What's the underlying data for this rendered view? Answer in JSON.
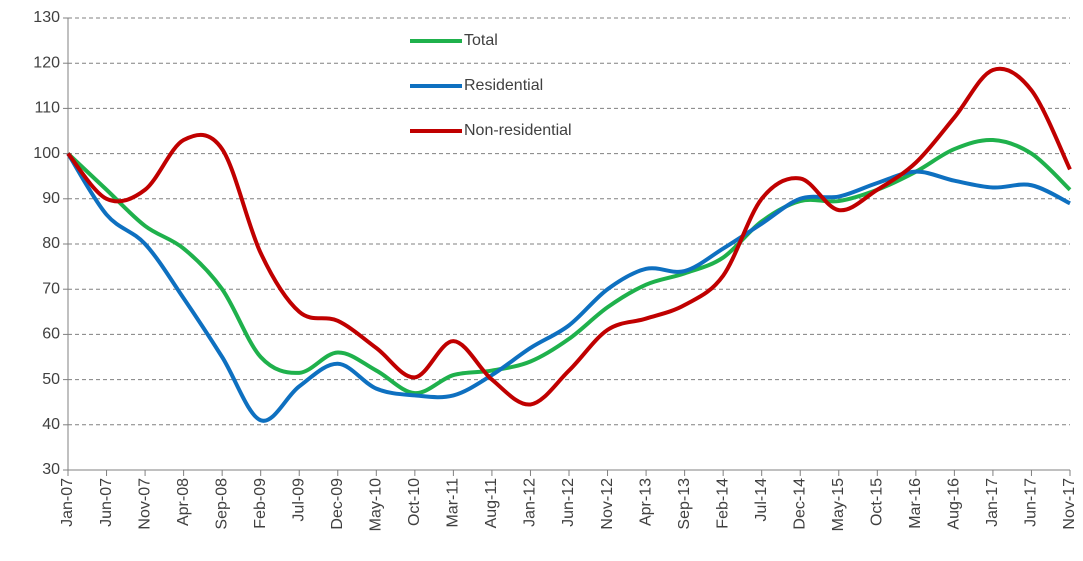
{
  "chart_data": {
    "type": "line",
    "categories": [
      "Jan-07",
      "Jun-07",
      "Nov-07",
      "Apr-08",
      "Sep-08",
      "Feb-09",
      "Jul-09",
      "Dec-09",
      "May-10",
      "Oct-10",
      "Mar-11",
      "Aug-11",
      "Jan-12",
      "Jun-12",
      "Nov-12",
      "Apr-13",
      "Sep-13",
      "Feb-14",
      "Jul-14",
      "Dec-14",
      "May-15",
      "Oct-15",
      "Mar-16",
      "Aug-16",
      "Jan-17",
      "Jun-17",
      "Nov-17"
    ],
    "series": [
      {
        "name": "Total",
        "color": "#1fb14c",
        "values": [
          100,
          92,
          84,
          79,
          70,
          55,
          51.5,
          56,
          52,
          47,
          51,
          52,
          54,
          59,
          66,
          71,
          73.5,
          77,
          85,
          89.5,
          89.5,
          92,
          96,
          101,
          103,
          100,
          92
        ]
      },
      {
        "name": "Residential",
        "color": "#0e70c0",
        "values": [
          100,
          86.5,
          80,
          68,
          55,
          41,
          48.5,
          53.5,
          48,
          46.5,
          46.5,
          51,
          57,
          62,
          70,
          74.5,
          74,
          79,
          84.5,
          90,
          90.5,
          93.5,
          96,
          94,
          92.5,
          93,
          89
        ]
      },
      {
        "name": "Non-residential",
        "color": "#c00000",
        "values": [
          100,
          90,
          92,
          103,
          101,
          78,
          65,
          63,
          57,
          50.5,
          58.5,
          50,
          44.5,
          52,
          61,
          63.5,
          66.5,
          73,
          90,
          94.5,
          87.5,
          92,
          98,
          108,
          118.5,
          114,
          96.5
        ]
      }
    ],
    "ylim": [
      30,
      130
    ],
    "yticks": [
      30,
      40,
      50,
      60,
      70,
      80,
      90,
      100,
      110,
      120,
      130
    ],
    "grid": true
  }
}
